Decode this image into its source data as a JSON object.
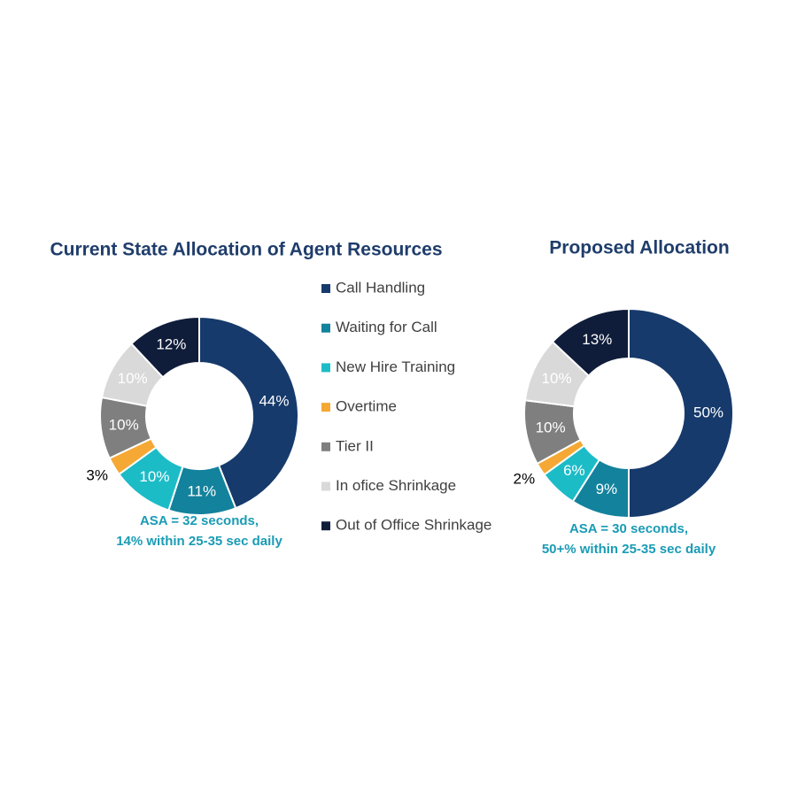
{
  "legend": {
    "categories": [
      "Call Handling",
      "Waiting for Call",
      "New Hire Training",
      "Overtime",
      "Tier II",
      "In ofice Shrinkage",
      "Out of Office Shrinkage"
    ],
    "colors": [
      "#163a6b",
      "#13829c",
      "#1cbcc7",
      "#f5a833",
      "#7f7f7f",
      "#d9d9d9",
      "#0f1d3a"
    ]
  },
  "chart_data": [
    {
      "type": "pie",
      "title": "Current State Allocation of Agent Resources",
      "values": [
        44,
        11,
        10,
        3,
        10,
        10,
        12
      ],
      "value_labels": [
        "44%",
        "11%",
        "10%",
        "3%",
        "10%",
        "10%",
        "12%"
      ],
      "annotations": [
        "ASA = 32 seconds,",
        "14% within 25-35 sec daily"
      ]
    },
    {
      "type": "pie",
      "title": "Proposed Allocation",
      "values": [
        50,
        9,
        6,
        2,
        10,
        10,
        13
      ],
      "value_labels": [
        "50%",
        "9%",
        "6%",
        "2%",
        "10%",
        "10%",
        "13%"
      ],
      "annotations": [
        "ASA = 30 seconds,",
        "50+% within 25-35 sec daily"
      ]
    }
  ]
}
